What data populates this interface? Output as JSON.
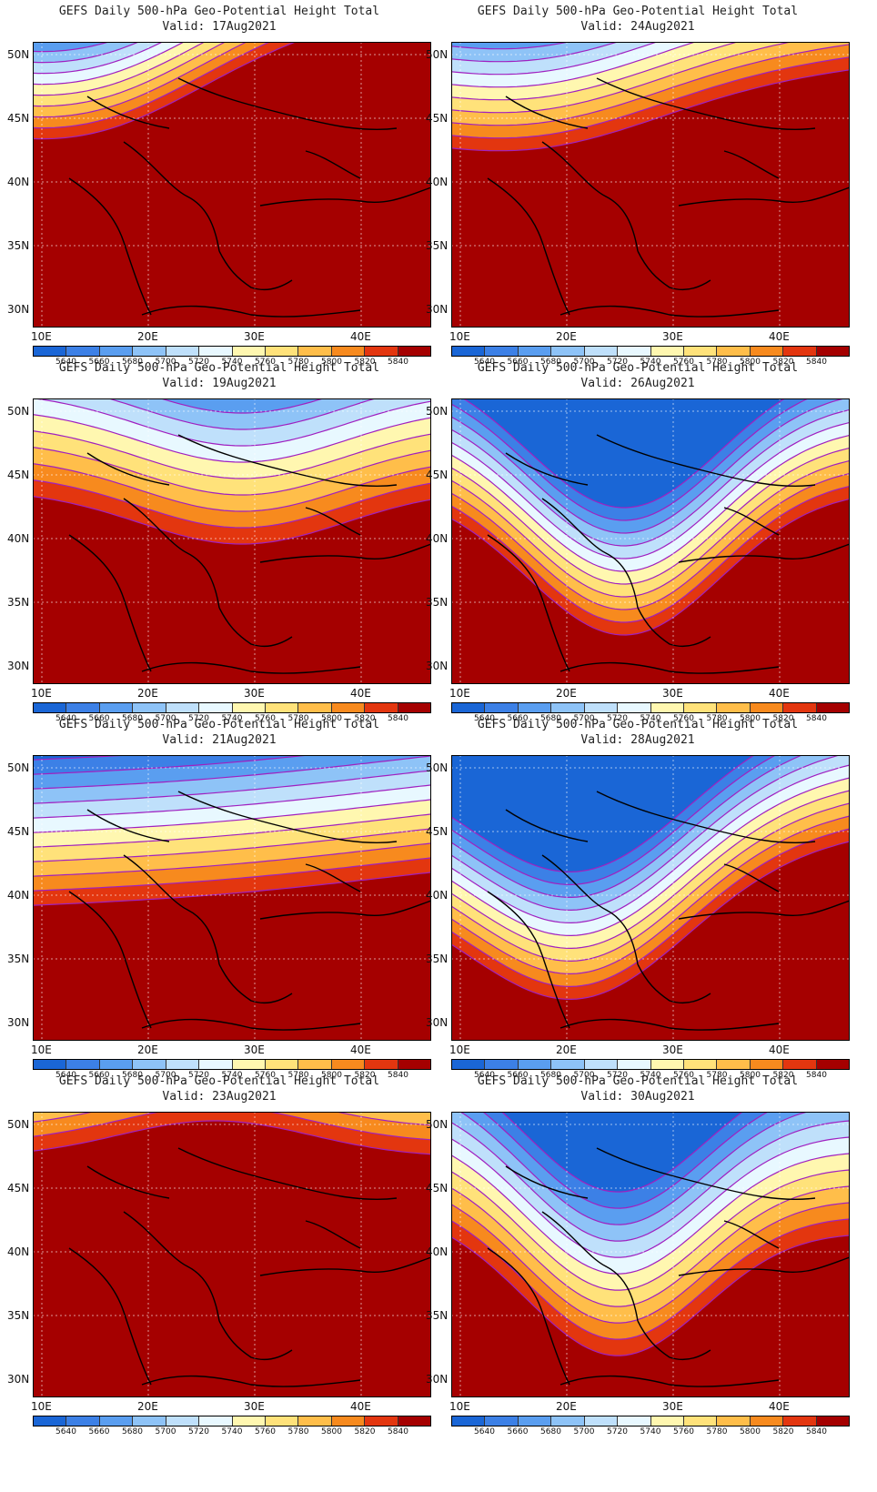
{
  "panels": [
    {
      "title": "GEFS Daily 500-hPa Geo-Potential Height Total",
      "valid": "Valid: 17Aug2021",
      "pattern": "north-trough-west"
    },
    {
      "title": "GEFS Daily 500-hPa Geo-Potential Height Total",
      "valid": "Valid: 24Aug2021",
      "pattern": "north-trough-weak"
    },
    {
      "title": "GEFS Daily 500-hPa Geo-Potential Height Total",
      "valid": "Valid: 19Aug2021",
      "pattern": "north-trough-center"
    },
    {
      "title": "GEFS Daily 500-hPa Geo-Potential Height Total",
      "valid": "Valid: 26Aug2021",
      "pattern": "deep-trough-balkans"
    },
    {
      "title": "GEFS Daily 500-hPa Geo-Potential Height Total",
      "valid": "Valid: 21Aug2021",
      "pattern": "zonal-flow"
    },
    {
      "title": "GEFS Daily 500-hPa Geo-Potential Height Total",
      "valid": "Valid: 28Aug2021",
      "pattern": "deep-trough-west"
    },
    {
      "title": "GEFS Daily 500-hPa Geo-Potential Height Total",
      "valid": "Valid: 23Aug2021",
      "pattern": "ridge"
    },
    {
      "title": "GEFS Daily 500-hPa Geo-Potential Height Total",
      "valid": "Valid: 30Aug2021",
      "pattern": "trough-east"
    }
  ],
  "lat_labels": [
    "50N",
    "45N",
    "40N",
    "35N",
    "30N"
  ],
  "lon_labels": [
    "10E",
    "20E",
    "30E",
    "40E"
  ],
  "colorbar": {
    "levels": [
      "5640",
      "5660",
      "5680",
      "5700",
      "5720",
      "5740",
      "5760",
      "5780",
      "5800",
      "5820",
      "5840"
    ],
    "colors": [
      "#1a66d6",
      "#3c80e6",
      "#5a9ef0",
      "#8ec3f7",
      "#bfe0fb",
      "#e8f8ff",
      "#fff7b0",
      "#ffe27a",
      "#ffbe4a",
      "#f78a1e",
      "#e3360f",
      "#a50000"
    ]
  }
}
